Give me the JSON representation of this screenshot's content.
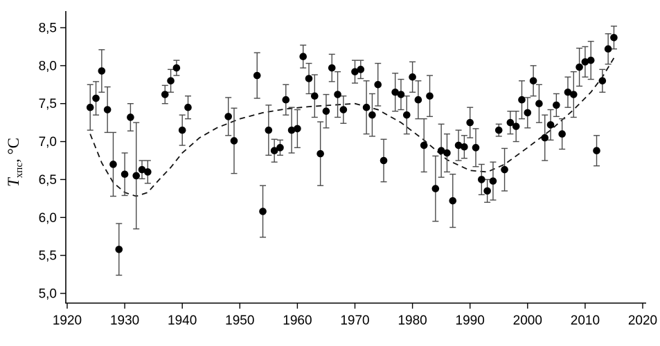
{
  "chart_data": {
    "type": "scatter",
    "title": "",
    "xlabel": "",
    "ylabel_prefix": "T",
    "ylabel_sub": "хпс",
    "ylabel_suffix": ", °C",
    "xlim": [
      1920,
      2020
    ],
    "ylim": [
      5.0,
      8.5
    ],
    "grid": false,
    "legend": "none",
    "point_color": "#000000",
    "errorbar_color": "#4a4a4a",
    "trend_color": "#111111",
    "trend_style": "dashed",
    "x_ticks": [
      {
        "v": 1920,
        "label": "1920"
      },
      {
        "v": 1930,
        "label": "1930"
      },
      {
        "v": 1940,
        "label": "1940"
      },
      {
        "v": 1950,
        "label": "1950"
      },
      {
        "v": 1960,
        "label": "1960"
      },
      {
        "v": 1970,
        "label": "1970"
      },
      {
        "v": 1980,
        "label": "1980"
      },
      {
        "v": 1990,
        "label": "1990"
      },
      {
        "v": 2000,
        "label": "2000"
      },
      {
        "v": 2010,
        "label": "2010"
      },
      {
        "v": 2020,
        "label": "2020"
      }
    ],
    "y_ticks": [
      {
        "v": 5.0,
        "label": "5,0"
      },
      {
        "v": 5.5,
        "label": "5,5"
      },
      {
        "v": 6.0,
        "label": "6,0"
      },
      {
        "v": 6.5,
        "label": "6,5"
      },
      {
        "v": 7.0,
        "label": "7,0"
      },
      {
        "v": 7.5,
        "label": "7,5"
      },
      {
        "v": 8.0,
        "label": "8,0"
      },
      {
        "v": 8.5,
        "label": "8,5"
      }
    ],
    "points": [
      {
        "x": 1924,
        "y": 7.45,
        "e": 0.3
      },
      {
        "x": 1925,
        "y": 7.57,
        "e": 0.22
      },
      {
        "x": 1926,
        "y": 7.93,
        "e": 0.28
      },
      {
        "x": 1927,
        "y": 7.42,
        "e": 0.3
      },
      {
        "x": 1928,
        "y": 6.7,
        "e": 0.42
      },
      {
        "x": 1929,
        "y": 5.58,
        "e": 0.34
      },
      {
        "x": 1930,
        "y": 6.57,
        "e": 0.28
      },
      {
        "x": 1931,
        "y": 7.32,
        "e": 0.18
      },
      {
        "x": 1932,
        "y": 6.55,
        "e": 0.7
      },
      {
        "x": 1933,
        "y": 6.63,
        "e": 0.12
      },
      {
        "x": 1934,
        "y": 6.6,
        "e": 0.15
      },
      {
        "x": 1937,
        "y": 7.62,
        "e": 0.12
      },
      {
        "x": 1938,
        "y": 7.8,
        "e": 0.15
      },
      {
        "x": 1939,
        "y": 7.97,
        "e": 0.1
      },
      {
        "x": 1940,
        "y": 7.15,
        "e": 0.2
      },
      {
        "x": 1941,
        "y": 7.45,
        "e": 0.15
      },
      {
        "x": 1948,
        "y": 7.33,
        "e": 0.25
      },
      {
        "x": 1949,
        "y": 7.01,
        "e": 0.43
      },
      {
        "x": 1953,
        "y": 7.87,
        "e": 0.3
      },
      {
        "x": 1954,
        "y": 6.08,
        "e": 0.34
      },
      {
        "x": 1955,
        "y": 7.15,
        "e": 0.33
      },
      {
        "x": 1956,
        "y": 6.88,
        "e": 0.15
      },
      {
        "x": 1957,
        "y": 6.92,
        "e": 0.1
      },
      {
        "x": 1958,
        "y": 7.55,
        "e": 0.2
      },
      {
        "x": 1959,
        "y": 7.15,
        "e": 0.3
      },
      {
        "x": 1960,
        "y": 7.17,
        "e": 0.25
      },
      {
        "x": 1961,
        "y": 8.12,
        "e": 0.15
      },
      {
        "x": 1962,
        "y": 7.83,
        "e": 0.2
      },
      {
        "x": 1963,
        "y": 7.6,
        "e": 0.28
      },
      {
        "x": 1964,
        "y": 6.84,
        "e": 0.42
      },
      {
        "x": 1965,
        "y": 7.4,
        "e": 0.22
      },
      {
        "x": 1966,
        "y": 7.97,
        "e": 0.18
      },
      {
        "x": 1967,
        "y": 7.62,
        "e": 0.3
      },
      {
        "x": 1968,
        "y": 7.42,
        "e": 0.18
      },
      {
        "x": 1970,
        "y": 7.92,
        "e": 0.15
      },
      {
        "x": 1971,
        "y": 7.95,
        "e": 0.12
      },
      {
        "x": 1972,
        "y": 7.45,
        "e": 0.35
      },
      {
        "x": 1973,
        "y": 7.35,
        "e": 0.28
      },
      {
        "x": 1974,
        "y": 7.75,
        "e": 0.28
      },
      {
        "x": 1975,
        "y": 6.75,
        "e": 0.28
      },
      {
        "x": 1977,
        "y": 7.65,
        "e": 0.25
      },
      {
        "x": 1978,
        "y": 7.62,
        "e": 0.2
      },
      {
        "x": 1979,
        "y": 7.35,
        "e": 0.25
      },
      {
        "x": 1980,
        "y": 7.85,
        "e": 0.2
      },
      {
        "x": 1981,
        "y": 7.55,
        "e": 0.25
      },
      {
        "x": 1982,
        "y": 6.95,
        "e": 0.35
      },
      {
        "x": 1983,
        "y": 7.6,
        "e": 0.27
      },
      {
        "x": 1984,
        "y": 6.38,
        "e": 0.43
      },
      {
        "x": 1985,
        "y": 6.88,
        "e": 0.35
      },
      {
        "x": 1986,
        "y": 6.85,
        "e": 0.25
      },
      {
        "x": 1987,
        "y": 6.22,
        "e": 0.35
      },
      {
        "x": 1988,
        "y": 6.95,
        "e": 0.2
      },
      {
        "x": 1989,
        "y": 6.93,
        "e": 0.15
      },
      {
        "x": 1990,
        "y": 7.25,
        "e": 0.2
      },
      {
        "x": 1991,
        "y": 6.92,
        "e": 0.25
      },
      {
        "x": 1992,
        "y": 6.5,
        "e": 0.2
      },
      {
        "x": 1993,
        "y": 6.35,
        "e": 0.15
      },
      {
        "x": 1994,
        "y": 6.48,
        "e": 0.25
      },
      {
        "x": 1995,
        "y": 7.15,
        "e": 0.08
      },
      {
        "x": 1996,
        "y": 6.63,
        "e": 0.28
      },
      {
        "x": 1997,
        "y": 7.25,
        "e": 0.15
      },
      {
        "x": 1998,
        "y": 7.2,
        "e": 0.2
      },
      {
        "x": 1999,
        "y": 7.55,
        "e": 0.25
      },
      {
        "x": 2000,
        "y": 7.38,
        "e": 0.2
      },
      {
        "x": 2001,
        "y": 7.8,
        "e": 0.2
      },
      {
        "x": 2002,
        "y": 7.5,
        "e": 0.25
      },
      {
        "x": 2003,
        "y": 7.05,
        "e": 0.3
      },
      {
        "x": 2004,
        "y": 7.22,
        "e": 0.2
      },
      {
        "x": 2005,
        "y": 7.48,
        "e": 0.15
      },
      {
        "x": 2006,
        "y": 7.1,
        "e": 0.2
      },
      {
        "x": 2007,
        "y": 7.65,
        "e": 0.2
      },
      {
        "x": 2008,
        "y": 7.62,
        "e": 0.3
      },
      {
        "x": 2009,
        "y": 7.98,
        "e": 0.25
      },
      {
        "x": 2010,
        "y": 8.05,
        "e": 0.2
      },
      {
        "x": 2011,
        "y": 8.07,
        "e": 0.25
      },
      {
        "x": 2012,
        "y": 6.88,
        "e": 0.2
      },
      {
        "x": 2013,
        "y": 7.8,
        "e": 0.15
      },
      {
        "x": 2014,
        "y": 8.22,
        "e": 0.2
      },
      {
        "x": 2015,
        "y": 8.37,
        "e": 0.15
      }
    ],
    "trend": [
      [
        1924,
        7.1
      ],
      [
        1926,
        6.72
      ],
      [
        1928,
        6.46
      ],
      [
        1930,
        6.33
      ],
      [
        1932,
        6.28
      ],
      [
        1934,
        6.33
      ],
      [
        1936,
        6.5
      ],
      [
        1938,
        6.66
      ],
      [
        1940,
        6.85
      ],
      [
        1943,
        7.05
      ],
      [
        1946,
        7.18
      ],
      [
        1950,
        7.3
      ],
      [
        1954,
        7.38
      ],
      [
        1958,
        7.43
      ],
      [
        1962,
        7.46
      ],
      [
        1966,
        7.48
      ],
      [
        1970,
        7.5
      ],
      [
        1974,
        7.42
      ],
      [
        1978,
        7.25
      ],
      [
        1982,
        7.02
      ],
      [
        1986,
        6.76
      ],
      [
        1990,
        6.62
      ],
      [
        1993,
        6.6
      ],
      [
        1996,
        6.7
      ],
      [
        2000,
        6.92
      ],
      [
        2004,
        7.15
      ],
      [
        2008,
        7.42
      ],
      [
        2011,
        7.65
      ],
      [
        2013,
        7.85
      ],
      [
        2015,
        8.1
      ]
    ]
  }
}
